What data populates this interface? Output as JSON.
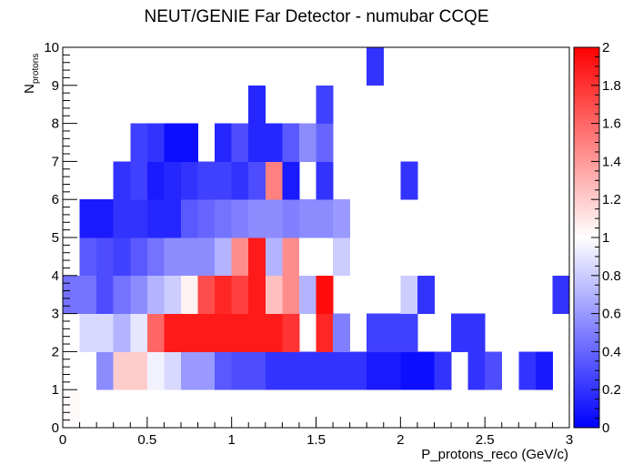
{
  "chart_data": {
    "type": "heatmap",
    "title": "NEUT/GENIE Far Detector - numubar CCQE",
    "xlabel": "P_protons_reco (GeV/c)",
    "ylabel_main": "N",
    "ylabel_sub": "protons",
    "xlim": [
      0,
      3
    ],
    "ylim": [
      0,
      10
    ],
    "x_bin_width": 0.1,
    "y_bin_width": 1,
    "x_ticks": [
      0,
      0.5,
      1,
      1.5,
      2,
      2.5,
      3
    ],
    "x_tick_labels": [
      "0",
      "0.5",
      "1",
      "1.5",
      "2",
      "2.5",
      "3"
    ],
    "y_ticks": [
      0,
      1,
      2,
      3,
      4,
      5,
      6,
      7,
      8,
      9,
      10
    ],
    "y_tick_labels": [
      "0",
      "1",
      "2",
      "3",
      "4",
      "5",
      "6",
      "7",
      "8",
      "9",
      "10"
    ],
    "zlim": [
      0,
      2
    ],
    "z_ticks": [
      0,
      0.2,
      0.4,
      0.6,
      0.8,
      1,
      1.2,
      1.4,
      1.6,
      1.8,
      2
    ],
    "z_tick_labels": [
      "0",
      "0.2",
      "0.4",
      "0.6",
      "0.8",
      "1",
      "1.2",
      "1.4",
      "1.6",
      "1.8",
      "2"
    ],
    "colormap": [
      "#0000ff",
      "#ffffff",
      "#ff0000"
    ],
    "grid": false,
    "rows": [
      {
        "n": 0,
        "values": [
          1.02,
          null,
          null,
          null,
          null,
          null,
          null,
          null,
          null,
          null,
          null,
          null,
          null,
          null,
          null,
          null,
          null,
          null,
          null,
          null,
          null,
          null,
          null,
          null,
          null,
          null,
          null,
          null,
          null,
          null
        ]
      },
      {
        "n": 1,
        "values": [
          null,
          null,
          0.55,
          1.2,
          1.2,
          0.95,
          0.85,
          0.6,
          0.6,
          0.35,
          0.3,
          0.3,
          0.2,
          0.2,
          0.2,
          0.2,
          0.2,
          0.2,
          0.1,
          0.1,
          0.05,
          0.05,
          0.2,
          null,
          0.2,
          0.3,
          null,
          0.2,
          0.1,
          null
        ]
      },
      {
        "n": 2,
        "values": [
          null,
          0.85,
          0.85,
          0.7,
          0.9,
          1.6,
          1.9,
          1.9,
          1.9,
          1.9,
          1.9,
          1.9,
          1.9,
          1.8,
          null,
          1.85,
          0.5,
          null,
          0.25,
          0.25,
          0.25,
          null,
          null,
          0.2,
          0.2,
          null,
          null,
          null,
          null,
          null
        ]
      },
      {
        "n": 3,
        "values": [
          0.45,
          0.45,
          0.3,
          0.45,
          0.55,
          0.7,
          0.8,
          1.05,
          1.7,
          1.85,
          1.75,
          1.9,
          1.25,
          1.45,
          0.7,
          1.95,
          null,
          null,
          null,
          null,
          0.8,
          0.2,
          null,
          null,
          null,
          null,
          null,
          null,
          null,
          0.2
        ]
      },
      {
        "n": 4,
        "values": [
          null,
          0.35,
          0.3,
          0.25,
          0.35,
          0.45,
          0.55,
          0.55,
          0.55,
          0.7,
          1.45,
          1.9,
          0.7,
          1.45,
          1.0,
          1.0,
          0.8,
          null,
          null,
          null,
          null,
          null,
          null,
          null,
          null,
          null,
          null,
          null,
          null,
          null
        ]
      },
      {
        "n": 5,
        "values": [
          null,
          0.1,
          0.1,
          0.2,
          0.2,
          0.15,
          0.15,
          0.35,
          0.4,
          0.45,
          0.5,
          0.55,
          0.55,
          0.5,
          0.55,
          0.55,
          0.6,
          null,
          null,
          null,
          null,
          null,
          null,
          null,
          null,
          null,
          null,
          null,
          null,
          null
        ]
      },
      {
        "n": 6,
        "values": [
          null,
          null,
          null,
          0.2,
          0.25,
          0.1,
          0.15,
          0.2,
          0.25,
          0.25,
          0.2,
          0.3,
          1.5,
          0.1,
          null,
          0.2,
          null,
          null,
          null,
          null,
          0.2,
          null,
          null,
          null,
          null,
          null,
          null,
          null,
          null,
          null
        ]
      },
      {
        "n": 7,
        "values": [
          null,
          null,
          null,
          null,
          0.25,
          0.2,
          0.05,
          0.05,
          null,
          0.15,
          0.3,
          0.15,
          0.15,
          0.35,
          0.55,
          0.4,
          null,
          null,
          null,
          null,
          null,
          null,
          null,
          null,
          null,
          null,
          null,
          null,
          null,
          null
        ]
      },
      {
        "n": 8,
        "values": [
          null,
          null,
          null,
          null,
          null,
          null,
          null,
          null,
          null,
          null,
          null,
          0.15,
          null,
          null,
          null,
          0.25,
          null,
          null,
          null,
          null,
          null,
          null,
          null,
          null,
          null,
          null,
          null,
          null,
          null,
          null
        ]
      },
      {
        "n": 9,
        "values": [
          null,
          null,
          null,
          null,
          null,
          null,
          null,
          null,
          null,
          null,
          null,
          null,
          null,
          null,
          null,
          null,
          null,
          null,
          0.2,
          null,
          null,
          null,
          null,
          null,
          null,
          null,
          null,
          null,
          null,
          null
        ]
      }
    ]
  }
}
